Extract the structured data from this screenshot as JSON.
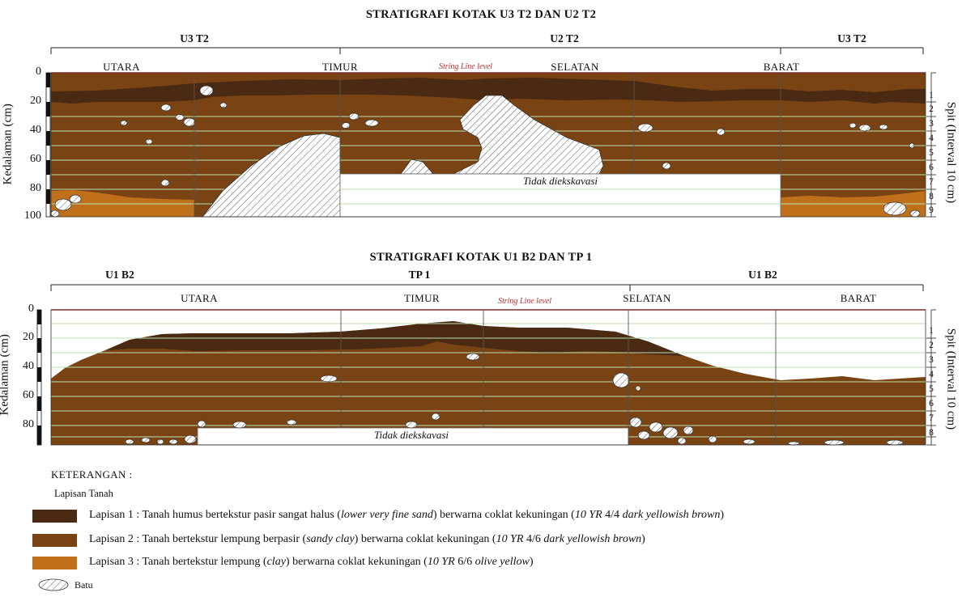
{
  "colors": {
    "layer1": "#4a2a12",
    "layer2": "#7a4314",
    "layer3": "#c0701a",
    "string_line": "#cc2a2a",
    "grid": "#b9e0b0"
  },
  "diagram1": {
    "title": "STRATIGRAFI KOTAK  U3 T2 DAN U2 T2",
    "sections": [
      "U3 T2",
      "U2 T2",
      "U3 T2"
    ],
    "sides": [
      "UTARA",
      "TIMUR",
      "SELATAN",
      "BARAT"
    ],
    "string_line_label": "String Line level",
    "y_ticks": [
      "0",
      "20",
      "40",
      "60",
      "80",
      "100"
    ],
    "y_axis_label": "Kedalaman (cm)",
    "spit_label": "Spit (Interval 10 cm)",
    "spits": [
      "1",
      "2",
      "3",
      "4",
      "5",
      "6",
      "7",
      "8",
      "9"
    ],
    "unexcavated_label": "Tidak diekskavasi"
  },
  "diagram2": {
    "title": "STRATIGRAFI KOTAK  U1 B2 DAN TP 1",
    "sections": [
      "U1 B2",
      "TP 1",
      "U1 B2"
    ],
    "sides": [
      "UTARA",
      "TIMUR",
      "SELATAN",
      "BARAT"
    ],
    "string_line_label": "String Line level",
    "y_ticks": [
      "0",
      "20",
      "40",
      "60",
      "80"
    ],
    "y_axis_label": "Kedalaman (cm)",
    "spit_label": "Spit (Interval 10 cm)",
    "spits": [
      "1",
      "2",
      "3",
      "4",
      "5",
      "6",
      "7",
      "8"
    ],
    "unexcavated_label": "Tidak diekskavasi"
  },
  "legend": {
    "heading": "KETERANGAN :",
    "subheading": "Lapisan Tanah",
    "layer1": {
      "a": "Lapisan 1 : Tanah humus bertekstur pasir sangat halus (",
      "b": "lower very fine sand",
      "c": ") berwarna coklat kekuningan (",
      "d": "10 YR",
      "e": " 4/4 ",
      "f": "dark yellowish brown",
      "g": ")"
    },
    "layer2": {
      "a": "Lapisan 2 : Tanah  bertekstur lempung berpasir (",
      "b": "sandy clay",
      "c": ") berwarna coklat kekuningan (",
      "d": "10 YR",
      "e": " 4/6 ",
      "f": "dark yellowish brown",
      "g": ")"
    },
    "layer3": {
      "a": "Lapisan 3 : Tanah  bertekstur lempung (",
      "b": "clay",
      "c": ") berwarna coklat kekuningan (",
      "d": "10 YR",
      "e": " 6/6 ",
      "f": "olive yellow",
      "g": ")"
    },
    "rock": "Batu"
  }
}
